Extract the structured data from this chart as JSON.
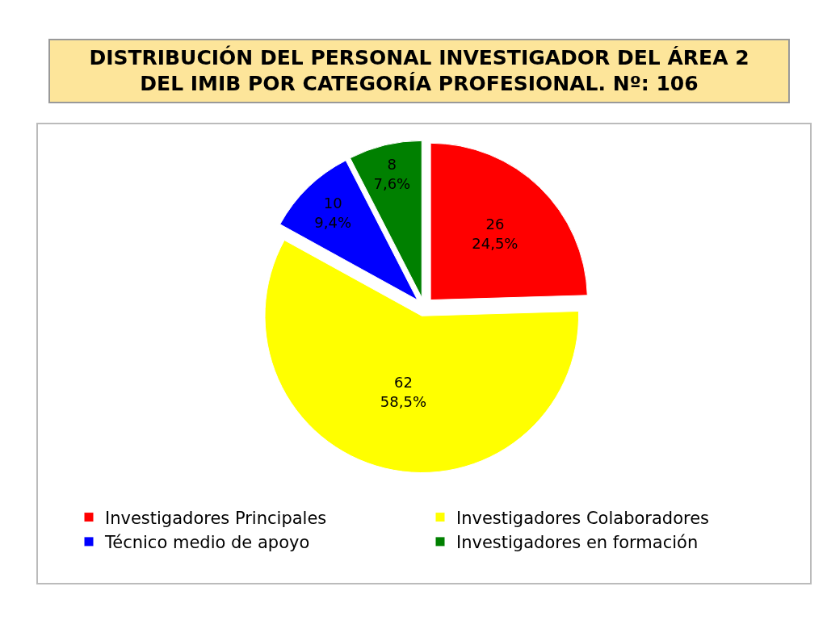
{
  "chart_data": {
    "type": "pie",
    "title": "DISTRIBUCIÓN DEL PERSONAL INVESTIGADOR DEL ÁREA 2 DEL IMIB POR CATEGORÍA PROFESIONAL. Nº: 106",
    "categories": [
      "Investigadores Principales",
      "Investigadores Colaboradores",
      "Técnico medio de apoyo",
      "Investigadores en formación"
    ],
    "values": [
      26,
      62,
      10,
      8
    ],
    "colors": [
      "#ff0000",
      "#ffff00",
      "#0000ff",
      "#008000"
    ],
    "value_labels": [
      "26\n24,5%",
      "62\n58,5%",
      "10\n9,4%",
      "8\n7,6%"
    ],
    "legend": "bottom"
  }
}
